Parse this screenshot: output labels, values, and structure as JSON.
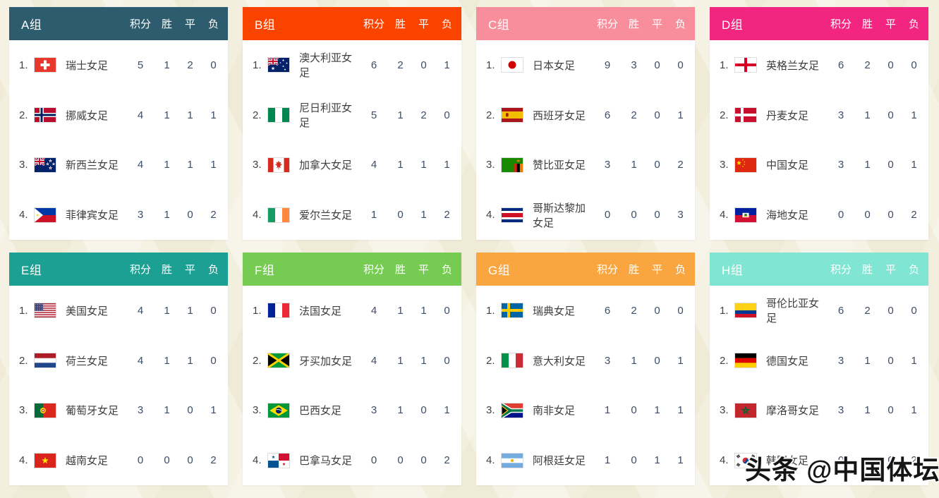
{
  "page": {
    "background": "#efebd6",
    "watermark": "头条 @中国体坛"
  },
  "columns": {
    "points": "积分",
    "win": "胜",
    "draw": "平",
    "loss": "负"
  },
  "groups": [
    {
      "name": "A组",
      "color": "#2d5c6e",
      "teams": [
        {
          "rank": "1.",
          "flag": "ch",
          "name": "瑞士女足",
          "points": 5,
          "win": 1,
          "draw": 2,
          "loss": 0
        },
        {
          "rank": "2.",
          "flag": "no",
          "name": "挪威女足",
          "points": 4,
          "win": 1,
          "draw": 1,
          "loss": 1
        },
        {
          "rank": "3.",
          "flag": "nz",
          "name": "新西兰女足",
          "points": 4,
          "win": 1,
          "draw": 1,
          "loss": 1
        },
        {
          "rank": "4.",
          "flag": "ph",
          "name": "菲律宾女足",
          "points": 3,
          "win": 1,
          "draw": 0,
          "loss": 2
        }
      ]
    },
    {
      "name": "B组",
      "color": "#fb4300",
      "teams": [
        {
          "rank": "1.",
          "flag": "au",
          "name": "澳大利亚女足",
          "points": 6,
          "win": 2,
          "draw": 0,
          "loss": 1
        },
        {
          "rank": "2.",
          "flag": "ng",
          "name": "尼日利亚女足",
          "points": 5,
          "win": 1,
          "draw": 2,
          "loss": 0
        },
        {
          "rank": "3.",
          "flag": "ca",
          "name": "加拿大女足",
          "points": 4,
          "win": 1,
          "draw": 1,
          "loss": 1
        },
        {
          "rank": "4.",
          "flag": "ie",
          "name": "爱尔兰女足",
          "points": 1,
          "win": 0,
          "draw": 1,
          "loss": 2
        }
      ]
    },
    {
      "name": "C组",
      "color": "#f88e9b",
      "teams": [
        {
          "rank": "1.",
          "flag": "jp",
          "name": "日本女足",
          "points": 9,
          "win": 3,
          "draw": 0,
          "loss": 0
        },
        {
          "rank": "2.",
          "flag": "es",
          "name": "西班牙女足",
          "points": 6,
          "win": 2,
          "draw": 0,
          "loss": 1
        },
        {
          "rank": "3.",
          "flag": "zm",
          "name": "赞比亚女足",
          "points": 3,
          "win": 1,
          "draw": 0,
          "loss": 2
        },
        {
          "rank": "4.",
          "flag": "cr",
          "name": "哥斯达黎加女足",
          "points": 0,
          "win": 0,
          "draw": 0,
          "loss": 3
        }
      ]
    },
    {
      "name": "D组",
      "color": "#f22681",
      "teams": [
        {
          "rank": "1.",
          "flag": "eng",
          "name": "英格兰女足",
          "points": 6,
          "win": 2,
          "draw": 0,
          "loss": 0
        },
        {
          "rank": "2.",
          "flag": "dk",
          "name": "丹麦女足",
          "points": 3,
          "win": 1,
          "draw": 0,
          "loss": 1
        },
        {
          "rank": "3.",
          "flag": "cn",
          "name": "中国女足",
          "points": 3,
          "win": 1,
          "draw": 0,
          "loss": 1
        },
        {
          "rank": "4.",
          "flag": "ht",
          "name": "海地女足",
          "points": 0,
          "win": 0,
          "draw": 0,
          "loss": 2
        }
      ]
    },
    {
      "name": "E组",
      "color": "#1ba093",
      "teams": [
        {
          "rank": "1.",
          "flag": "us",
          "name": "美国女足",
          "points": 4,
          "win": 1,
          "draw": 1,
          "loss": 0
        },
        {
          "rank": "2.",
          "flag": "nl",
          "name": "荷兰女足",
          "points": 4,
          "win": 1,
          "draw": 1,
          "loss": 0
        },
        {
          "rank": "3.",
          "flag": "pt",
          "name": "葡萄牙女足",
          "points": 3,
          "win": 1,
          "draw": 0,
          "loss": 1
        },
        {
          "rank": "4.",
          "flag": "vn",
          "name": "越南女足",
          "points": 0,
          "win": 0,
          "draw": 0,
          "loss": 2
        }
      ]
    },
    {
      "name": "F组",
      "color": "#76cc52",
      "teams": [
        {
          "rank": "1.",
          "flag": "fr",
          "name": "法国女足",
          "points": 4,
          "win": 1,
          "draw": 1,
          "loss": 0
        },
        {
          "rank": "2.",
          "flag": "jm",
          "name": "牙买加女足",
          "points": 4,
          "win": 1,
          "draw": 1,
          "loss": 0
        },
        {
          "rank": "3.",
          "flag": "br",
          "name": "巴西女足",
          "points": 3,
          "win": 1,
          "draw": 0,
          "loss": 1
        },
        {
          "rank": "4.",
          "flag": "pa",
          "name": "巴拿马女足",
          "points": 0,
          "win": 0,
          "draw": 0,
          "loss": 2
        }
      ]
    },
    {
      "name": "G组",
      "color": "#f9a640",
      "teams": [
        {
          "rank": "1.",
          "flag": "se",
          "name": "瑞典女足",
          "points": 6,
          "win": 2,
          "draw": 0,
          "loss": 0
        },
        {
          "rank": "2.",
          "flag": "it",
          "name": "意大利女足",
          "points": 3,
          "win": 1,
          "draw": 0,
          "loss": 1
        },
        {
          "rank": "3.",
          "flag": "za",
          "name": "南非女足",
          "points": 1,
          "win": 0,
          "draw": 1,
          "loss": 1
        },
        {
          "rank": "4.",
          "flag": "ar",
          "name": "阿根廷女足",
          "points": 1,
          "win": 0,
          "draw": 1,
          "loss": 1
        }
      ]
    },
    {
      "name": "H组",
      "color": "#80e5d2",
      "teams": [
        {
          "rank": "1.",
          "flag": "co",
          "name": "哥伦比亚女足",
          "points": 6,
          "win": 2,
          "draw": 0,
          "loss": 0
        },
        {
          "rank": "2.",
          "flag": "de",
          "name": "德国女足",
          "points": 3,
          "win": 1,
          "draw": 0,
          "loss": 1
        },
        {
          "rank": "3.",
          "flag": "ma",
          "name": "摩洛哥女足",
          "points": 3,
          "win": 1,
          "draw": 0,
          "loss": 1
        },
        {
          "rank": "4.",
          "flag": "kr",
          "name": "韩国女足",
          "points": 0,
          "win": 0,
          "draw": 0,
          "loss": 2
        }
      ]
    }
  ]
}
